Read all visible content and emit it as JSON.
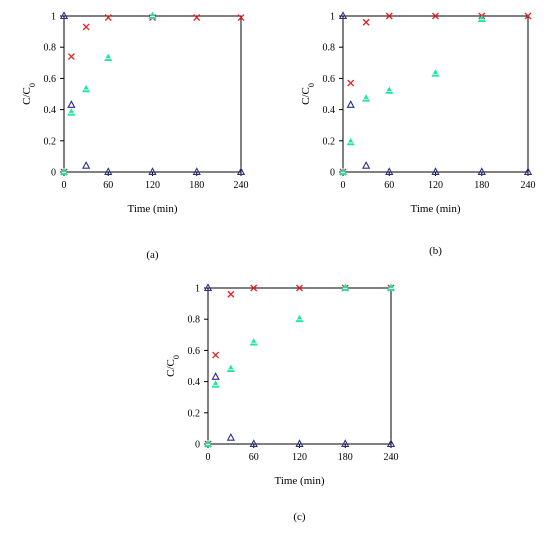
{
  "chart_data": [
    {
      "type": "scatter",
      "panel_label": "(a)",
      "xlabel": "Time (min)",
      "ylabel": "C/C",
      "ylabel_sub": "0",
      "xlim": [
        0,
        240
      ],
      "ylim": [
        0,
        1
      ],
      "xticks": [
        0,
        60,
        120,
        180,
        240
      ],
      "yticks": [
        0,
        0.2,
        0.4,
        0.6,
        0.8,
        1
      ],
      "series": [
        {
          "marker": "x",
          "color": "#e8201f",
          "x": [
            0,
            10,
            30,
            60,
            120,
            180,
            240
          ],
          "y": [
            0,
            0.74,
            0.93,
            0.99,
            0.99,
            0.99,
            0.99
          ]
        },
        {
          "marker": "triangle",
          "color": "#2a2f8a",
          "x": [
            0,
            10,
            30,
            60,
            120,
            180,
            240
          ],
          "y": [
            1,
            0.43,
            0.04,
            0,
            0,
            0,
            0
          ]
        },
        {
          "marker": "triangle-filled",
          "color": "#1ee6a0",
          "x": [
            0,
            10,
            30,
            60,
            120
          ],
          "y": [
            0,
            0.38,
            0.53,
            0.73,
            1
          ]
        }
      ]
    },
    {
      "type": "scatter",
      "panel_label": "(b)",
      "xlabel": "Time (min)",
      "ylabel": "C/C",
      "ylabel_sub": "0",
      "xlim": [
        0,
        240
      ],
      "ylim": [
        0,
        1
      ],
      "xticks": [
        0,
        60,
        120,
        180,
        240
      ],
      "yticks": [
        0,
        0.2,
        0.4,
        0.6,
        0.8,
        1
      ],
      "series": [
        {
          "marker": "x",
          "color": "#e8201f",
          "x": [
            0,
            10,
            30,
            60,
            120,
            180,
            240
          ],
          "y": [
            0,
            0.57,
            0.96,
            1,
            1,
            1,
            1
          ]
        },
        {
          "marker": "triangle",
          "color": "#2a2f8a",
          "x": [
            0,
            10,
            30,
            60,
            120,
            180,
            240
          ],
          "y": [
            1,
            0.43,
            0.04,
            0,
            0,
            0,
            0
          ]
        },
        {
          "marker": "triangle-filled",
          "color": "#1ee6a0",
          "x": [
            0,
            10,
            30,
            60,
            120,
            180
          ],
          "y": [
            0,
            0.19,
            0.47,
            0.52,
            0.63,
            0.98
          ]
        }
      ]
    },
    {
      "type": "scatter",
      "panel_label": "(c)",
      "xlabel": "Time (min)",
      "ylabel": "C/C",
      "ylabel_sub": "0",
      "xlim": [
        0,
        240
      ],
      "ylim": [
        0,
        1
      ],
      "xticks": [
        0,
        60,
        120,
        180,
        240
      ],
      "yticks": [
        0,
        0.2,
        0.4,
        0.6,
        0.8,
        1
      ],
      "series": [
        {
          "marker": "x",
          "color": "#e8201f",
          "x": [
            0,
            10,
            30,
            60,
            120,
            180,
            240
          ],
          "y": [
            0,
            0.57,
            0.96,
            1,
            1,
            1,
            1
          ]
        },
        {
          "marker": "triangle",
          "color": "#2a2f8a",
          "x": [
            0,
            10,
            30,
            60,
            120,
            180,
            240
          ],
          "y": [
            1,
            0.43,
            0.04,
            0,
            0,
            0,
            0
          ]
        },
        {
          "marker": "triangle-filled",
          "color": "#1ee6a0",
          "x": [
            0,
            10,
            30,
            60,
            120,
            180,
            240
          ],
          "y": [
            0,
            0.38,
            0.48,
            0.65,
            0.8,
            1,
            1
          ]
        }
      ]
    }
  ]
}
